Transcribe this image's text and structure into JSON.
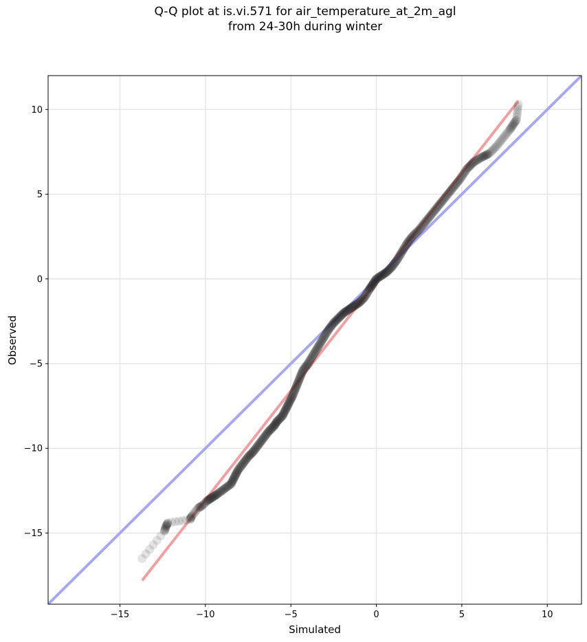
{
  "chart_data": {
    "type": "scatter",
    "title": [
      "Q-Q plot at is.vi.571 for air_temperature_at_2m_agl",
      "from 24-30h during winter"
    ],
    "xlabel": "Simulated",
    "ylabel": "Observed",
    "xlim": [
      -19.2,
      12.0
    ],
    "ylim": [
      -19.2,
      12.0
    ],
    "xticks": [
      -15,
      -10,
      -5,
      0,
      5,
      10
    ],
    "yticks": [
      -15,
      -10,
      -5,
      0,
      5,
      10
    ],
    "xtick_labels": [
      "−15",
      "−10",
      "−5",
      "0",
      "5",
      "10"
    ],
    "ytick_labels": [
      "−15",
      "−10",
      "−5",
      "0",
      "5",
      "10"
    ],
    "grid": true,
    "series": [
      {
        "kind": "quantiles",
        "color": "#222222",
        "points": [
          [
            -13.7,
            -16.5
          ],
          [
            -12.4,
            -14.9
          ],
          [
            -12.3,
            -14.6
          ],
          [
            -12.2,
            -14.4
          ],
          [
            -10.9,
            -14.2
          ],
          [
            -10.8,
            -14.0
          ],
          [
            -10.4,
            -13.5
          ],
          [
            -10.2,
            -13.4
          ],
          [
            -9.9,
            -13.1
          ],
          [
            -9.6,
            -12.9
          ],
          [
            -9.3,
            -12.7
          ],
          [
            -8.9,
            -12.4
          ],
          [
            -8.5,
            -12.1
          ],
          [
            -8.3,
            -11.7
          ],
          [
            -8.1,
            -11.3
          ],
          [
            -7.8,
            -10.9
          ],
          [
            -7.5,
            -10.5
          ],
          [
            -7.2,
            -10.2
          ],
          [
            -6.9,
            -9.8
          ],
          [
            -6.6,
            -9.4
          ],
          [
            -6.3,
            -9.0
          ],
          [
            -6.0,
            -8.7
          ],
          [
            -5.8,
            -8.4
          ],
          [
            -5.5,
            -8.1
          ],
          [
            -5.3,
            -7.7
          ],
          [
            -5.1,
            -7.3
          ],
          [
            -4.9,
            -6.9
          ],
          [
            -4.7,
            -6.4
          ],
          [
            -4.5,
            -5.9
          ],
          [
            -4.3,
            -5.4
          ],
          [
            -4.0,
            -5.0
          ],
          [
            -3.7,
            -4.5
          ],
          [
            -3.4,
            -4.0
          ],
          [
            -3.1,
            -3.5
          ],
          [
            -2.8,
            -3.0
          ],
          [
            -2.5,
            -2.6
          ],
          [
            -2.2,
            -2.3
          ],
          [
            -1.9,
            -2.0
          ],
          [
            -1.6,
            -1.8
          ],
          [
            -1.3,
            -1.6
          ],
          [
            -1.0,
            -1.4
          ],
          [
            -0.7,
            -1.1
          ],
          [
            -0.4,
            -0.6
          ],
          [
            -0.2,
            -0.3
          ],
          [
            0.0,
            0.0
          ],
          [
            0.3,
            0.2
          ],
          [
            0.6,
            0.4
          ],
          [
            0.9,
            0.7
          ],
          [
            1.2,
            1.1
          ],
          [
            1.5,
            1.6
          ],
          [
            1.8,
            2.1
          ],
          [
            2.1,
            2.5
          ],
          [
            2.5,
            2.9
          ],
          [
            2.9,
            3.4
          ],
          [
            3.3,
            3.9
          ],
          [
            3.7,
            4.4
          ],
          [
            4.1,
            4.9
          ],
          [
            4.5,
            5.4
          ],
          [
            4.9,
            5.9
          ],
          [
            5.3,
            6.5
          ],
          [
            5.7,
            6.9
          ],
          [
            6.2,
            7.2
          ],
          [
            6.6,
            7.4
          ],
          [
            7.0,
            7.8
          ],
          [
            7.4,
            8.3
          ],
          [
            7.8,
            8.8
          ],
          [
            8.0,
            9.1
          ],
          [
            8.2,
            9.4
          ],
          [
            8.3,
            10.3
          ]
        ]
      },
      {
        "kind": "regression-line",
        "color": "#f0a0a0",
        "points": [
          [
            -13.7,
            -17.8
          ],
          [
            8.3,
            10.5
          ]
        ]
      },
      {
        "kind": "identity-line",
        "color": "#a8a8f0",
        "points": [
          [
            -19.2,
            -19.2
          ],
          [
            12.0,
            12.0
          ]
        ]
      }
    ]
  }
}
